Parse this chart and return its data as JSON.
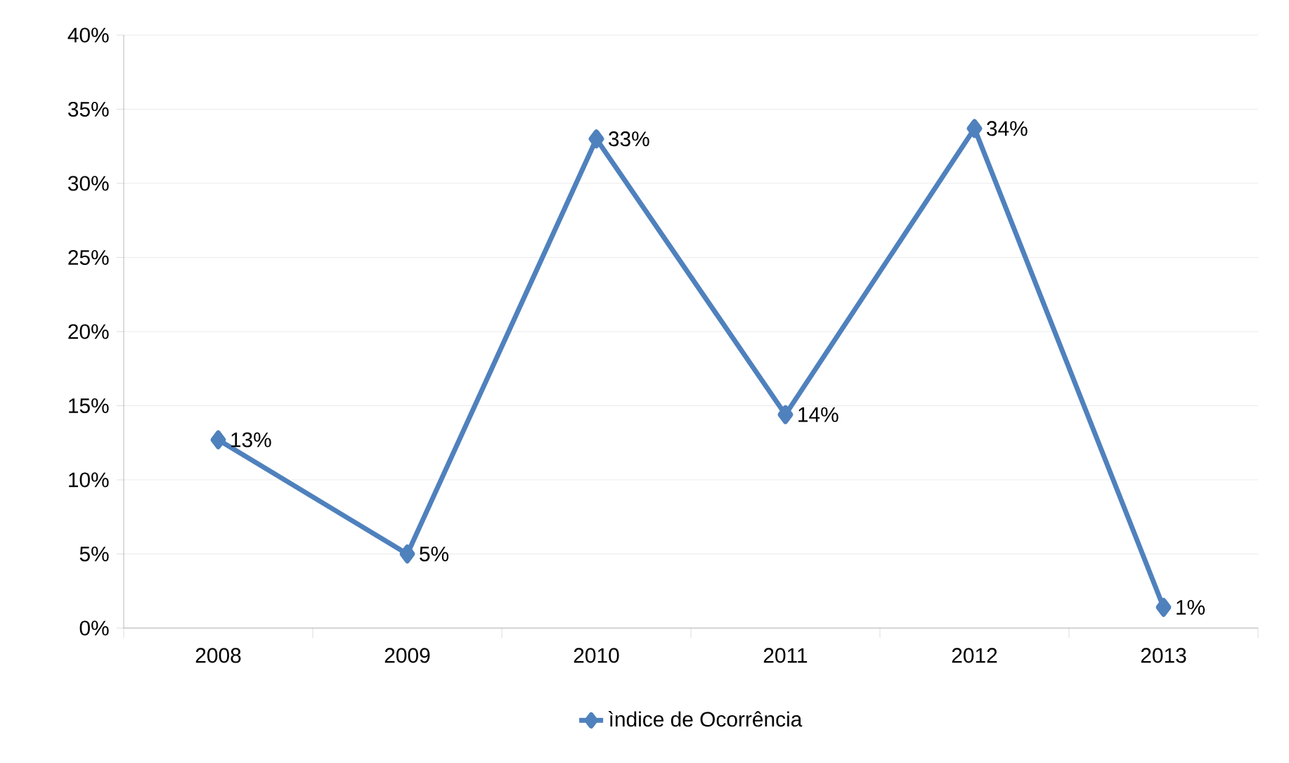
{
  "chart_data": {
    "type": "line",
    "categories": [
      "2008",
      "2009",
      "2010",
      "2011",
      "2012",
      "2013"
    ],
    "series": [
      {
        "name": "ìndice de Ocorrência",
        "color": "#4f81bd",
        "values": [
          12.7,
          5.0,
          33.0,
          14.4,
          33.7,
          1.4
        ],
        "value_labels": [
          "13%",
          "5%",
          "33%",
          "14%",
          "34%",
          "1%"
        ]
      }
    ],
    "ylim": [
      0,
      40
    ],
    "yticks": [
      {
        "value": 0,
        "label": "0%"
      },
      {
        "value": 5,
        "label": "5%"
      },
      {
        "value": 10,
        "label": "10%"
      },
      {
        "value": 15,
        "label": "15%"
      },
      {
        "value": 20,
        "label": "20%"
      },
      {
        "value": 25,
        "label": "25%"
      },
      {
        "value": 30,
        "label": "30%"
      },
      {
        "value": 35,
        "label": "35%"
      },
      {
        "value": 40,
        "label": "40%"
      }
    ],
    "grid": "y",
    "legend": "bottom",
    "marker": "diamond",
    "line_style": "solid"
  }
}
